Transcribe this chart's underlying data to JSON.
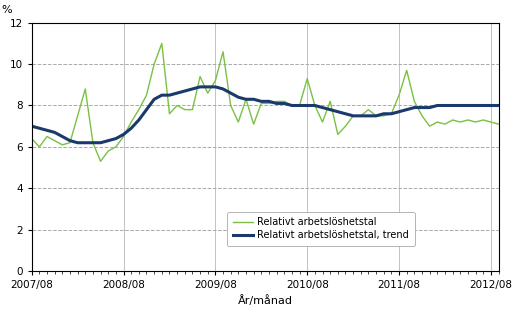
{
  "ylabel_text": "%",
  "xlabel": "År/månad",
  "ylim": [
    0,
    12
  ],
  "yticks": [
    0,
    2,
    4,
    6,
    8,
    10,
    12
  ],
  "xtick_labels": [
    "2007/08",
    "2008/08",
    "2009/08",
    "2010/08",
    "2011/08",
    "2012/08"
  ],
  "tick_positions": [
    0,
    12,
    24,
    36,
    48,
    60
  ],
  "line_color": "#7ac143",
  "trend_color": "#1a3a6b",
  "legend_labels": [
    "Relativt arbetslöshetstal",
    "Relativt arbetslöshetstal, trend"
  ],
  "raw_values": [
    6.4,
    6.0,
    6.5,
    6.3,
    6.1,
    6.2,
    7.5,
    8.8,
    6.2,
    5.3,
    5.8,
    6.0,
    6.5,
    7.2,
    7.8,
    8.5,
    10.0,
    11.0,
    7.6,
    8.0,
    7.8,
    7.8,
    9.4,
    8.6,
    9.2,
    10.6,
    8.0,
    7.2,
    8.3,
    7.1,
    8.1,
    8.1,
    8.2,
    8.2,
    8.0,
    8.0,
    9.3,
    8.0,
    7.2,
    8.2,
    6.6,
    7.0,
    7.5,
    7.5,
    7.8,
    7.5,
    7.5,
    7.6,
    8.5,
    9.7,
    8.2,
    7.5,
    7.0,
    7.2,
    7.1,
    7.3,
    7.2,
    7.3,
    7.2,
    7.3,
    7.2,
    7.1
  ],
  "trend_values": [
    7.0,
    6.9,
    6.8,
    6.7,
    6.5,
    6.3,
    6.2,
    6.2,
    6.2,
    6.2,
    6.3,
    6.4,
    6.6,
    6.9,
    7.3,
    7.8,
    8.3,
    8.5,
    8.5,
    8.6,
    8.7,
    8.8,
    8.9,
    8.9,
    8.9,
    8.8,
    8.6,
    8.4,
    8.3,
    8.3,
    8.2,
    8.2,
    8.1,
    8.1,
    8.0,
    8.0,
    8.0,
    8.0,
    7.9,
    7.8,
    7.7,
    7.6,
    7.5,
    7.5,
    7.5,
    7.5,
    7.6,
    7.6,
    7.7,
    7.8,
    7.9,
    7.9,
    7.9,
    8.0,
    8.0,
    8.0,
    8.0,
    8.0,
    8.0,
    8.0,
    8.0,
    8.0
  ]
}
